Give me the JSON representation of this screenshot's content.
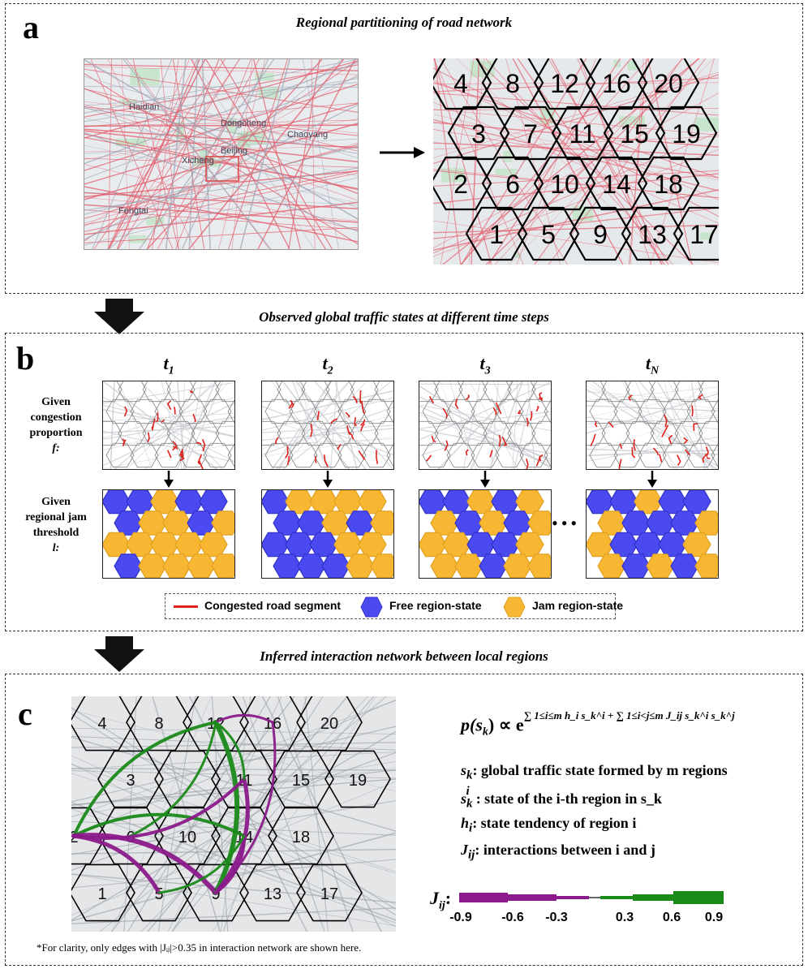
{
  "panel_a": {
    "letter": "a",
    "title": "Regional partitioning of road network",
    "map_labels": [
      "Haidian",
      "Dongcheng",
      "Beijing",
      "Fengtai",
      "Xicheng",
      "Chaoyang"
    ],
    "region_numbers": [
      "4",
      "8",
      "12",
      "16",
      "20",
      "3",
      "7",
      "11",
      "15",
      "19",
      "2",
      "6",
      "10",
      "14",
      "18",
      "1",
      "5",
      "9",
      "13",
      "17"
    ]
  },
  "transition_ab": "Observed global traffic states at different time steps",
  "panel_b": {
    "letter": "b",
    "time_steps": [
      {
        "name": "t",
        "sub": "1"
      },
      {
        "name": "t",
        "sub": "2"
      },
      {
        "name": "t",
        "sub": "3"
      },
      {
        "name": "t",
        "sub": "N"
      }
    ],
    "ellipsis": "•••",
    "row1_label": [
      "Given",
      "congestion",
      "proportion",
      "f:"
    ],
    "row2_label": [
      "Given",
      "regional jam",
      "threshold",
      "l:"
    ],
    "legend": {
      "congested": "Congested road segment",
      "free": "Free region-state",
      "jam": "Jam region-state"
    },
    "colors": {
      "free": "#4a4af0",
      "jam": "#f7b733",
      "congested": "#e0201b"
    }
  },
  "transition_bc": "Inferred interaction network between local regions",
  "panel_c": {
    "letter": "c",
    "region_numbers": [
      "4",
      "8",
      "12",
      "16",
      "20",
      "3",
      "6",
      "11",
      "15",
      "19",
      "2",
      "10",
      "14",
      "18",
      "1",
      "5",
      "9",
      "13",
      "17"
    ],
    "formula_lhs": "p(s",
    "formula_lhs_sub": "k",
    "formula_rhs": ") ∝ e",
    "formula_exponent": "∑ 1≤i≤m h_i s_k^i + ∑ 1≤i<j≤m J_ij s_k^i s_k^j",
    "definitions": [
      {
        "sym": "s",
        "sub": "k",
        "sup": "",
        "text": ": global traffic state formed by m regions"
      },
      {
        "sym": "s",
        "sub": "k",
        "sup": "i",
        "text": ": state of the i-th region in s_k"
      },
      {
        "sym": "h",
        "sub": "i",
        "sup": "",
        "text": ":  state tendency of region i"
      },
      {
        "sym": "J",
        "sub": "ij",
        "sup": "",
        "text": ": interactions between i and j"
      }
    ],
    "colorbar_label": "J",
    "colorbar_label_sub": "ij",
    "colorbar_label_suffix": ":",
    "colorbar_ticks": [
      "-0.9",
      "-0.6",
      "-0.3",
      "0.3",
      "0.6",
      "0.9"
    ],
    "colors": {
      "negative": "#8b1a8b",
      "positive": "#1a8a1a"
    },
    "note": "*For clarity,  only edges with |Jᵢⱼ|>0.35 in interaction network are shown here."
  }
}
